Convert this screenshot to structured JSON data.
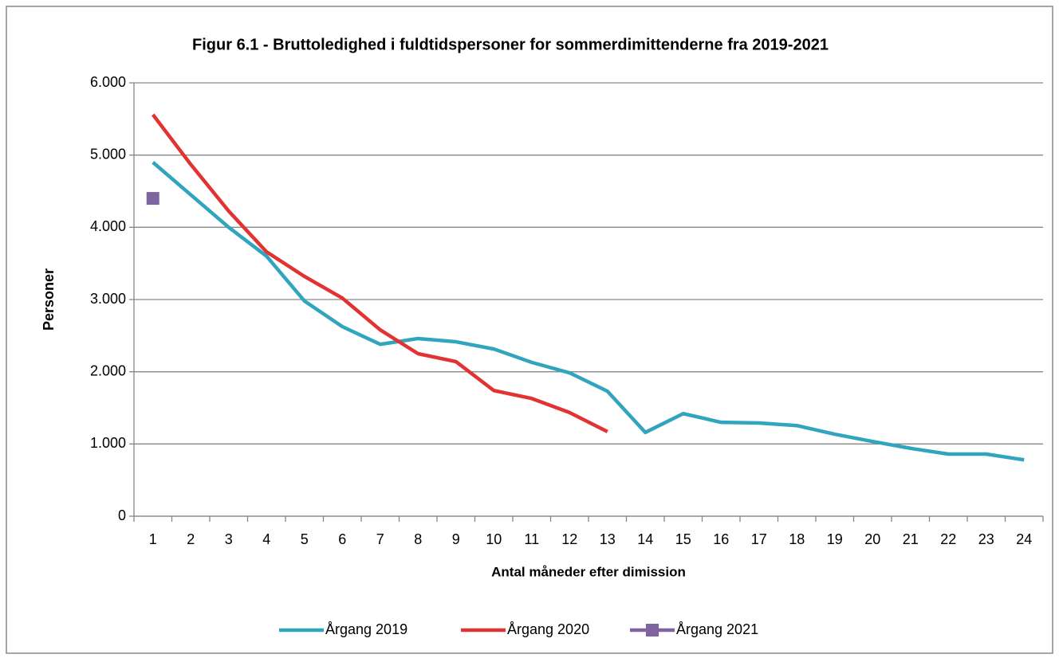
{
  "chart_data": {
    "type": "line",
    "title": "Figur 6.1 - Bruttoledighed i fuldtidspersoner for sommerdimittenderne fra 2019-2021",
    "x_label": "Antal måneder efter dimission",
    "y_label": "Personer",
    "categories": [
      "1",
      "2",
      "3",
      "4",
      "5",
      "6",
      "7",
      "8",
      "9",
      "10",
      "11",
      "12",
      "13",
      "14",
      "15",
      "16",
      "17",
      "18",
      "19",
      "20",
      "21",
      "22",
      "23",
      "24"
    ],
    "series": [
      {
        "name": "Årgang 2019",
        "color": "#31a5bd",
        "marker": "none",
        "values": [
          4900,
          4450,
          4000,
          3600,
          2980,
          2625,
          2380,
          2460,
          2415,
          2315,
          2130,
          1985,
          1730,
          1160,
          1420,
          1300,
          1290,
          1255,
          1135,
          1035,
          940,
          860,
          860,
          780
        ]
      },
      {
        "name": "Årgang 2020",
        "color": "#e23232",
        "marker": "none",
        "values": [
          5560,
          4870,
          4225,
          3660,
          3320,
          3020,
          2580,
          2250,
          2140,
          1740,
          1630,
          1435,
          1170,
          null,
          null,
          null,
          null,
          null,
          null,
          null,
          null,
          null,
          null,
          null
        ]
      },
      {
        "name": "Årgang 2021",
        "color": "#8064a2",
        "marker": "square",
        "values": [
          4400,
          null,
          null,
          null,
          null,
          null,
          null,
          null,
          null,
          null,
          null,
          null,
          null,
          null,
          null,
          null,
          null,
          null,
          null,
          null,
          null,
          null,
          null,
          null
        ]
      }
    ],
    "ylim": [
      0,
      6000
    ],
    "yticks": [
      0,
      {
        "value": 1000,
        "label": "1.000"
      },
      {
        "value": 2000,
        "label": "2.000"
      },
      {
        "value": 3000,
        "label": "3.000"
      },
      {
        "value": 4000,
        "label": "4.000"
      },
      {
        "value": 5000,
        "label": "5.000"
      },
      {
        "value": 6000,
        "label": "6.000"
      }
    ],
    "grid": true,
    "legend": "bottom"
  }
}
